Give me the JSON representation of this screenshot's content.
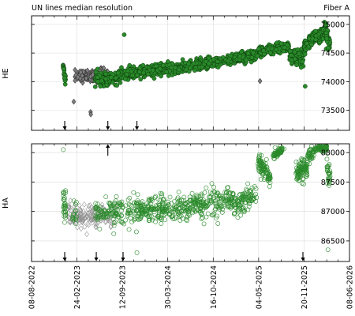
{
  "header": {
    "title": "UN lines median resolution",
    "fiber": "Fiber A"
  },
  "chart_data": [
    {
      "type": "scatter",
      "ylabel": "HE",
      "xlim": [
        "2022-08-08",
        "2026-06-08"
      ],
      "ylim": [
        73150,
        75150
      ],
      "yticks": [
        73500,
        74000,
        74500,
        75000
      ],
      "grid": true,
      "marker_style": "filled",
      "series": [
        {
          "color": "#2a8a2a",
          "edge": "#0b3d0b",
          "marker": "circle",
          "segments": [
            {
              "x0": "2022-12-25",
              "x1": "2023-01-05",
              "y": [
                74300,
                74000
              ],
              "spread": 90,
              "n": 25
            },
            {
              "x0": "2023-05-15",
              "x1": "2023-07-01",
              "y": [
                74100,
                74000
              ],
              "spread": 120,
              "n": 70
            },
            {
              "x0": "2023-07-01",
              "x1": "2023-09-20",
              "y": [
                74000,
                74130
              ],
              "spread": 110,
              "n": 110
            },
            {
              "x0": "2023-09-20",
              "x1": "2024-05-01",
              "y": [
                74120,
                74250
              ],
              "spread": 110,
              "n": 260
            },
            {
              "x0": "2024-05-01",
              "x1": "2024-11-01",
              "y": [
                74220,
                74360
              ],
              "spread": 100,
              "n": 230
            },
            {
              "x0": "2024-11-01",
              "x1": "2025-04-25",
              "y": [
                74330,
                74480
              ],
              "spread": 100,
              "n": 200
            },
            {
              "x0": "2025-04-25",
              "x1": "2025-09-15",
              "y": [
                74500,
                74620
              ],
              "spread": 100,
              "n": 170
            },
            {
              "x0": "2025-09-15",
              "x1": "2025-11-20",
              "y": [
                74450,
                74420
              ],
              "spread": 150,
              "n": 70
            },
            {
              "x0": "2025-11-20",
              "x1": "2026-02-25",
              "y": [
                74620,
                74900
              ],
              "spread": 120,
              "n": 150
            },
            {
              "x0": "2026-02-25",
              "x1": "2026-03-15",
              "y": [
                74850,
                74600
              ],
              "spread": 180,
              "n": 30
            }
          ],
          "points": [
            {
              "x": "2023-09-20",
              "y": 74820
            },
            {
              "x": "2025-11-25",
              "y": 73920
            },
            {
              "x": "2026-02-18",
              "y": 75040
            }
          ]
        },
        {
          "color": "#808080",
          "edge": "#303030",
          "marker": "diamond",
          "segments": [
            {
              "x0": "2023-02-15",
              "x1": "2023-05-25",
              "y": [
                74100,
                74100
              ],
              "spread": 110,
              "n": 110
            },
            {
              "x0": "2023-06-05",
              "x1": "2023-07-15",
              "y": [
                74150,
                74100
              ],
              "spread": 110,
              "n": 40
            }
          ],
          "points": [
            {
              "x": "2023-02-10",
              "y": 73650
            },
            {
              "x": "2023-04-25",
              "y": 73470
            },
            {
              "x": "2023-04-26",
              "y": 73430
            },
            {
              "x": "2025-05-10",
              "y": 74010
            }
          ]
        }
      ],
      "arrows": [
        {
          "x": "2023-01-01",
          "dir": "down"
        },
        {
          "x": "2023-07-10",
          "dir": "down"
        },
        {
          "x": "2023-11-15",
          "dir": "down"
        }
      ]
    },
    {
      "type": "scatter",
      "ylabel": "HA",
      "xlim": [
        "2022-08-08",
        "2026-06-08"
      ],
      "ylim": [
        86150,
        88150
      ],
      "yticks": [
        86500,
        87000,
        87500,
        88000
      ],
      "xticks": [
        "08-08-2022",
        "24-02-2023",
        "12-09-2023",
        "30-03-2024",
        "16-10-2024",
        "04-05-2025",
        "20-11-2025",
        "08-06-2026"
      ],
      "grid": true,
      "marker_style": "open",
      "series": [
        {
          "color": "#2a8a2a",
          "marker": "circle",
          "segments": [
            {
              "x0": "2022-12-25",
              "x1": "2023-01-06",
              "y": [
                87250,
                87000
              ],
              "spread": 280,
              "n": 30
            },
            {
              "x0": "2023-02-05",
              "x1": "2023-02-25",
              "y": [
                87050,
                86950
              ],
              "spread": 260,
              "n": 15
            },
            {
              "x0": "2023-05-15",
              "x1": "2023-08-01",
              "y": [
                86950,
                86980
              ],
              "spread": 230,
              "n": 60
            },
            {
              "x0": "2023-08-01",
              "x1": "2023-11-20",
              "y": [
                86980,
                87000
              ],
              "spread": 330,
              "n": 90
            },
            {
              "x0": "2023-11-20",
              "x1": "2024-06-01",
              "y": [
                87000,
                87050
              ],
              "spread": 250,
              "n": 200
            },
            {
              "x0": "2024-06-01",
              "x1": "2025-01-15",
              "y": [
                87050,
                87200
              ],
              "spread": 240,
              "n": 220
            },
            {
              "x0": "2025-01-15",
              "x1": "2025-04-25",
              "y": [
                87150,
                87250
              ],
              "spread": 230,
              "n": 100
            },
            {
              "x0": "2025-05-01",
              "x1": "2025-06-25",
              "y": [
                87850,
                87600
              ],
              "spread": 160,
              "n": 90
            },
            {
              "x0": "2025-07-05",
              "x1": "2025-08-25",
              "y": [
                87950,
                88080
              ],
              "spread": 90,
              "n": 60
            },
            {
              "x0": "2025-10-15",
              "x1": "2025-12-05",
              "y": [
                87650,
                87750
              ],
              "spread": 240,
              "n": 100
            },
            {
              "x0": "2025-12-05",
              "x1": "2026-01-05",
              "y": [
                87900,
                88050
              ],
              "spread": 110,
              "n": 40
            },
            {
              "x0": "2026-01-05",
              "x1": "2026-02-28",
              "y": [
                88060,
                88090
              ],
              "spread": 50,
              "n": 70
            },
            {
              "x0": "2026-02-28",
              "x1": "2026-03-15",
              "y": [
                87750,
                87550
              ],
              "spread": 250,
              "n": 30
            }
          ],
          "points": [
            {
              "x": "2022-12-26",
              "y": 88050
            },
            {
              "x": "2023-11-15",
              "y": 86300
            },
            {
              "x": "2026-03-05",
              "y": 86350
            },
            {
              "x": "2025-04-05",
              "y": 87400
            }
          ]
        },
        {
          "color": "#909090",
          "marker": "diamond",
          "segments": [
            {
              "x0": "2023-01-15",
              "x1": "2023-05-25",
              "y": [
                86950,
                86900
              ],
              "spread": 230,
              "n": 110
            },
            {
              "x0": "2023-05-25",
              "x1": "2023-08-15",
              "y": [
                86950,
                86930
              ],
              "spread": 190,
              "n": 45
            }
          ],
          "points": []
        }
      ],
      "arrows": [
        {
          "x": "2023-01-01",
          "dir": "down"
        },
        {
          "x": "2023-05-20",
          "dir": "down"
        },
        {
          "x": "2023-09-15",
          "dir": "down"
        },
        {
          "x": "2025-11-15",
          "dir": "down"
        }
      ],
      "upArrows": [
        {
          "x": "2023-07-10"
        }
      ]
    }
  ]
}
